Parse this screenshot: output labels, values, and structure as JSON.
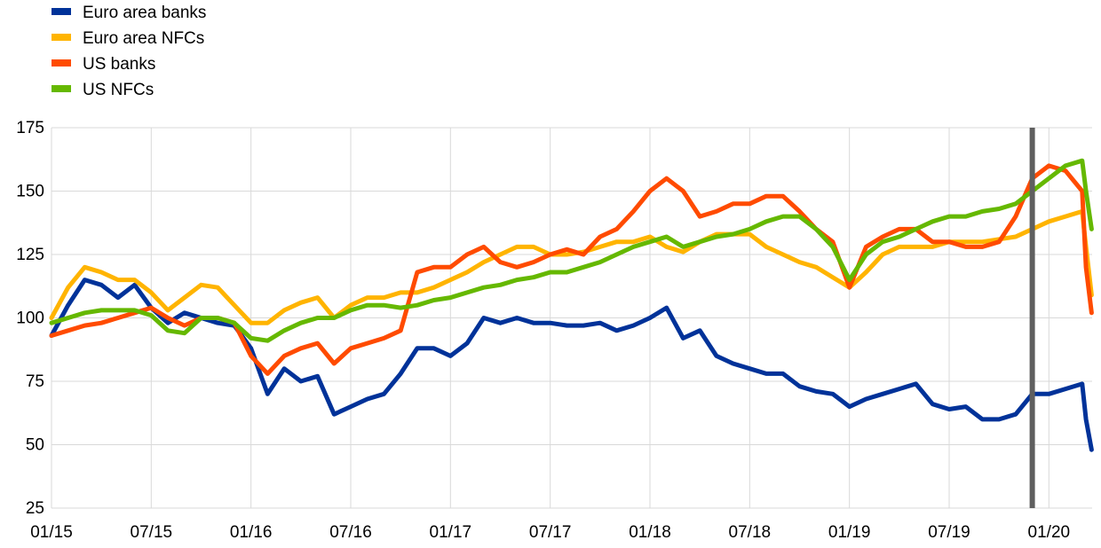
{
  "chart_data": {
    "type": "line",
    "title": "",
    "xlabel": "",
    "ylabel": "",
    "ylim": [
      25,
      175
    ],
    "y_ticks": [
      "25",
      "50",
      "75",
      "100",
      "125",
      "150",
      "175"
    ],
    "x_ticks": [
      "01/15",
      "07/15",
      "01/16",
      "07/16",
      "01/17",
      "07/17",
      "01/18",
      "07/18",
      "01/19",
      "07/19",
      "01/20"
    ],
    "x_range": [
      "2015-01",
      "2020-03"
    ],
    "grid": "horizontal and vertical",
    "legend_position": "top-left",
    "marker": {
      "date": "2019-12",
      "color": "#5f5f5f"
    },
    "series": [
      {
        "name": "Euro area banks",
        "color": "#003299",
        "x": [
          "2015-01",
          "2015-02",
          "2015-03",
          "2015-04",
          "2015-05",
          "2015-06",
          "2015-07",
          "2015-08",
          "2015-09",
          "2015-10",
          "2015-11",
          "2015-12",
          "2016-01",
          "2016-02",
          "2016-03",
          "2016-04",
          "2016-05",
          "2016-06",
          "2016-07",
          "2016-08",
          "2016-09",
          "2016-10",
          "2016-11",
          "2016-12",
          "2017-01",
          "2017-02",
          "2017-03",
          "2017-04",
          "2017-05",
          "2017-06",
          "2017-07",
          "2017-08",
          "2017-09",
          "2017-10",
          "2017-11",
          "2017-12",
          "2018-01",
          "2018-02",
          "2018-03",
          "2018-04",
          "2018-05",
          "2018-06",
          "2018-07",
          "2018-08",
          "2018-09",
          "2018-10",
          "2018-11",
          "2018-12",
          "2019-01",
          "2019-02",
          "2019-03",
          "2019-04",
          "2019-05",
          "2019-06",
          "2019-07",
          "2019-08",
          "2019-09",
          "2019-10",
          "2019-11",
          "2019-12",
          "2020-01",
          "2020-02",
          "2020-03"
        ],
        "values": [
          93,
          105,
          115,
          113,
          108,
          113,
          104,
          98,
          102,
          100,
          98,
          97,
          88,
          70,
          80,
          75,
          77,
          62,
          65,
          68,
          70,
          78,
          88,
          88,
          85,
          90,
          100,
          98,
          100,
          98,
          98,
          97,
          97,
          98,
          95,
          97,
          100,
          104,
          92,
          95,
          85,
          82,
          80,
          78,
          78,
          73,
          71,
          70,
          65,
          68,
          70,
          72,
          74,
          66,
          64,
          65,
          60,
          60,
          62,
          70,
          70,
          72,
          74
        ],
        "end": [
          [
            "2020-03-08",
            60
          ],
          [
            "2020-03-18",
            48
          ]
        ]
      },
      {
        "name": "Euro area NFCs",
        "color": "#ffb400",
        "x": [
          "2015-01",
          "2015-02",
          "2015-03",
          "2015-04",
          "2015-05",
          "2015-06",
          "2015-07",
          "2015-08",
          "2015-09",
          "2015-10",
          "2015-11",
          "2015-12",
          "2016-01",
          "2016-02",
          "2016-03",
          "2016-04",
          "2016-05",
          "2016-06",
          "2016-07",
          "2016-08",
          "2016-09",
          "2016-10",
          "2016-11",
          "2016-12",
          "2017-01",
          "2017-02",
          "2017-03",
          "2017-04",
          "2017-05",
          "2017-06",
          "2017-07",
          "2017-08",
          "2017-09",
          "2017-10",
          "2017-11",
          "2017-12",
          "2018-01",
          "2018-02",
          "2018-03",
          "2018-04",
          "2018-05",
          "2018-06",
          "2018-07",
          "2018-08",
          "2018-09",
          "2018-10",
          "2018-11",
          "2018-12",
          "2019-01",
          "2019-02",
          "2019-03",
          "2019-04",
          "2019-05",
          "2019-06",
          "2019-07",
          "2019-08",
          "2019-09",
          "2019-10",
          "2019-11",
          "2019-12",
          "2020-01",
          "2020-02",
          "2020-03"
        ],
        "values": [
          100,
          112,
          120,
          118,
          115,
          115,
          110,
          103,
          108,
          113,
          112,
          105,
          98,
          98,
          103,
          106,
          108,
          100,
          105,
          108,
          108,
          110,
          110,
          112,
          115,
          118,
          122,
          125,
          128,
          128,
          125,
          125,
          126,
          128,
          130,
          130,
          132,
          128,
          126,
          130,
          133,
          133,
          133,
          128,
          125,
          122,
          120,
          116,
          112,
          118,
          125,
          128,
          128,
          128,
          130,
          130,
          130,
          131,
          132,
          135,
          138,
          140,
          142
        ],
        "end": [
          [
            "2020-03-08",
            128
          ],
          [
            "2020-03-18",
            109
          ]
        ]
      },
      {
        "name": "US banks",
        "color": "#ff4b00",
        "x": [
          "2015-01",
          "2015-02",
          "2015-03",
          "2015-04",
          "2015-05",
          "2015-06",
          "2015-07",
          "2015-08",
          "2015-09",
          "2015-10",
          "2015-11",
          "2015-12",
          "2016-01",
          "2016-02",
          "2016-03",
          "2016-04",
          "2016-05",
          "2016-06",
          "2016-07",
          "2016-08",
          "2016-09",
          "2016-10",
          "2016-11",
          "2016-12",
          "2017-01",
          "2017-02",
          "2017-03",
          "2017-04",
          "2017-05",
          "2017-06",
          "2017-07",
          "2017-08",
          "2017-09",
          "2017-10",
          "2017-11",
          "2017-12",
          "2018-01",
          "2018-02",
          "2018-03",
          "2018-04",
          "2018-05",
          "2018-06",
          "2018-07",
          "2018-08",
          "2018-09",
          "2018-10",
          "2018-11",
          "2018-12",
          "2019-01",
          "2019-02",
          "2019-03",
          "2019-04",
          "2019-05",
          "2019-06",
          "2019-07",
          "2019-08",
          "2019-09",
          "2019-10",
          "2019-11",
          "2019-12",
          "2020-01",
          "2020-02",
          "2020-03"
        ],
        "values": [
          93,
          95,
          97,
          98,
          100,
          102,
          104,
          100,
          97,
          100,
          100,
          98,
          85,
          78,
          85,
          88,
          90,
          82,
          88,
          90,
          92,
          95,
          118,
          120,
          120,
          125,
          128,
          122,
          120,
          122,
          125,
          127,
          125,
          132,
          135,
          142,
          150,
          155,
          150,
          140,
          142,
          145,
          145,
          148,
          148,
          142,
          135,
          130,
          112,
          128,
          132,
          135,
          135,
          130,
          130,
          128,
          128,
          130,
          140,
          155,
          160,
          158,
          150
        ],
        "end": [
          [
            "2020-03-08",
            120
          ],
          [
            "2020-03-18",
            102
          ]
        ]
      },
      {
        "name": "US NFCs",
        "color": "#65b800",
        "x": [
          "2015-01",
          "2015-02",
          "2015-03",
          "2015-04",
          "2015-05",
          "2015-06",
          "2015-07",
          "2015-08",
          "2015-09",
          "2015-10",
          "2015-11",
          "2015-12",
          "2016-01",
          "2016-02",
          "2016-03",
          "2016-04",
          "2016-05",
          "2016-06",
          "2016-07",
          "2016-08",
          "2016-09",
          "2016-10",
          "2016-11",
          "2016-12",
          "2017-01",
          "2017-02",
          "2017-03",
          "2017-04",
          "2017-05",
          "2017-06",
          "2017-07",
          "2017-08",
          "2017-09",
          "2017-10",
          "2017-11",
          "2017-12",
          "2018-01",
          "2018-02",
          "2018-03",
          "2018-04",
          "2018-05",
          "2018-06",
          "2018-07",
          "2018-08",
          "2018-09",
          "2018-10",
          "2018-11",
          "2018-12",
          "2019-01",
          "2019-02",
          "2019-03",
          "2019-04",
          "2019-05",
          "2019-06",
          "2019-07",
          "2019-08",
          "2019-09",
          "2019-10",
          "2019-11",
          "2019-12",
          "2020-01",
          "2020-02",
          "2020-03"
        ],
        "values": [
          98,
          100,
          102,
          103,
          103,
          103,
          101,
          95,
          94,
          100,
          100,
          98,
          92,
          91,
          95,
          98,
          100,
          100,
          103,
          105,
          105,
          104,
          105,
          107,
          108,
          110,
          112,
          113,
          115,
          116,
          118,
          118,
          120,
          122,
          125,
          128,
          130,
          132,
          128,
          130,
          132,
          133,
          135,
          138,
          140,
          140,
          135,
          128,
          115,
          125,
          130,
          132,
          135,
          138,
          140,
          140,
          142,
          143,
          145,
          150,
          155,
          160,
          162
        ],
        "end": [
          [
            "2020-03-08",
            150
          ],
          [
            "2020-03-18",
            135
          ]
        ]
      }
    ]
  }
}
